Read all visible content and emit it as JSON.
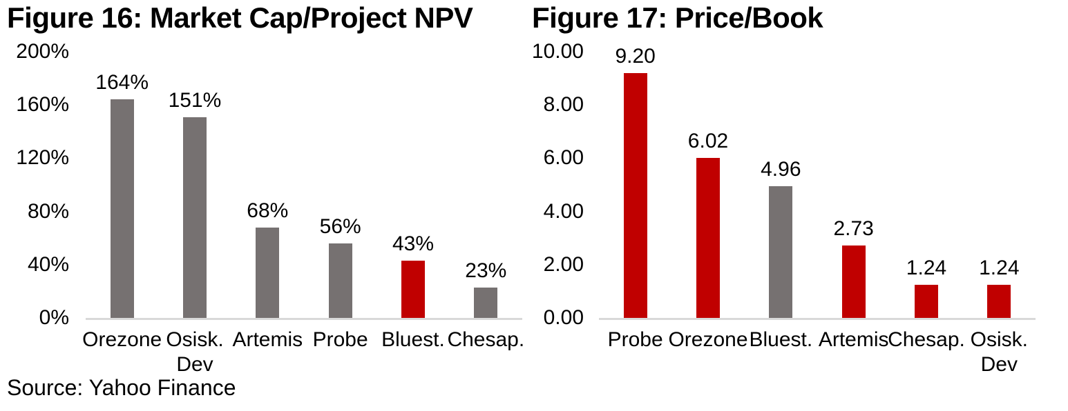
{
  "source_note": "Source: Yahoo Finance",
  "colors": {
    "red": "#c00000",
    "gray": "#767171",
    "axis_line": "#d9d9d9",
    "text": "#000000",
    "background": "#ffffff"
  },
  "chart_data": [
    {
      "type": "bar",
      "title": "Figure 16: Market Cap/Project NPV",
      "categories": [
        "Orezone",
        "Osisk. Dev",
        "Artemis",
        "Probe",
        "Bluest.",
        "Chesap."
      ],
      "values": [
        164,
        151,
        68,
        56,
        43,
        23
      ],
      "value_labels": [
        "164%",
        "151%",
        "68%",
        "56%",
        "43%",
        "23%"
      ],
      "bar_colors": [
        "gray",
        "gray",
        "gray",
        "gray",
        "red",
        "gray"
      ],
      "xlabel": "",
      "ylabel": "",
      "ylim": [
        0,
        200
      ],
      "ytick_step": 40,
      "ytick_labels": [
        "0%",
        "40%",
        "80%",
        "120%",
        "160%",
        "200%"
      ],
      "grid": false,
      "legend": "none"
    },
    {
      "type": "bar",
      "title": "Figure 17: Price/Book",
      "categories": [
        "Probe",
        "Orezone",
        "Bluest.",
        "Artemis",
        "Chesap.",
        "Osisk. Dev"
      ],
      "values": [
        9.2,
        6.02,
        4.96,
        2.73,
        1.24,
        1.24
      ],
      "value_labels": [
        "9.20",
        "6.02",
        "4.96",
        "2.73",
        "1.24",
        "1.24"
      ],
      "bar_colors": [
        "red",
        "red",
        "gray",
        "red",
        "red",
        "red"
      ],
      "xlabel": "",
      "ylabel": "",
      "ylim": [
        0,
        10
      ],
      "ytick_step": 2,
      "ytick_labels": [
        "0.00",
        "2.00",
        "4.00",
        "6.00",
        "8.00",
        "10.00"
      ],
      "grid": false,
      "legend": "none"
    }
  ]
}
